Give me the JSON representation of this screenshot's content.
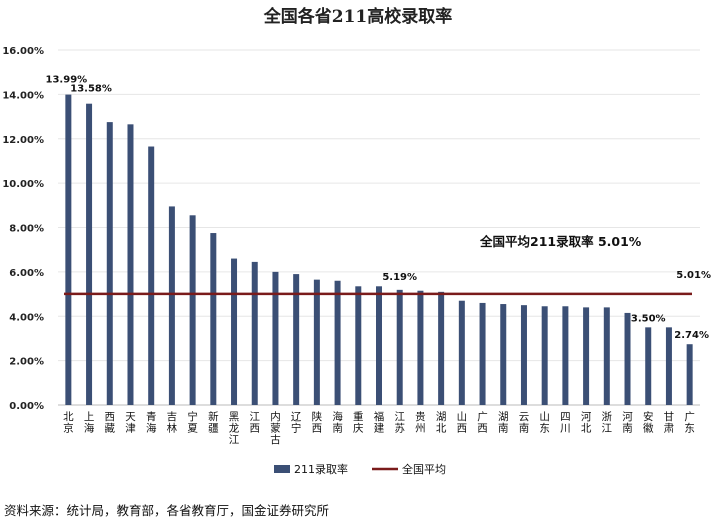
{
  "chart_data": {
    "type": "bar",
    "title": "全国各省211高校录取率",
    "categories": [
      "北京",
      "上海",
      "西藏",
      "天津",
      "青海",
      "吉林",
      "宁夏",
      "新疆",
      "黑龙江",
      "江西",
      "内蒙古",
      "辽宁",
      "陕西",
      "海南",
      "重庆",
      "福建",
      "江苏",
      "贵州",
      "湖北",
      "山西",
      "广西",
      "湖南",
      "云南",
      "山东",
      "四川",
      "河北",
      "浙江",
      "河南",
      "安徽",
      "甘肃",
      "广东"
    ],
    "series": [
      {
        "name": "211录取率",
        "values": [
          13.99,
          13.58,
          12.75,
          12.65,
          11.65,
          8.95,
          8.55,
          7.75,
          6.6,
          6.45,
          6.0,
          5.9,
          5.65,
          5.6,
          5.35,
          5.35,
          5.19,
          5.15,
          5.1,
          4.7,
          4.6,
          4.55,
          4.5,
          4.45,
          4.45,
          4.4,
          4.4,
          4.15,
          3.5,
          3.5,
          2.74
        ],
        "color": "#3b4f75"
      }
    ],
    "reference_line": {
      "name": "全国平均",
      "value": 5.01,
      "color": "#7a1b1b",
      "annotation": "全国平均211录取率 5.01%",
      "end_label": "5.01%"
    },
    "data_labels": [
      {
        "index": 0,
        "text": "13.99%"
      },
      {
        "index": 1,
        "text": "13.58%"
      },
      {
        "index": 16,
        "text": "5.19%"
      },
      {
        "index": 28,
        "text": "3.50%"
      },
      {
        "index": 30,
        "text": "2.74%"
      }
    ],
    "y_ticks": [
      "0.00%",
      "2.00%",
      "4.00%",
      "6.00%",
      "8.00%",
      "10.00%",
      "12.00%",
      "14.00%",
      "16.00%"
    ],
    "ylim": [
      0,
      16
    ],
    "grid": true,
    "legend_position": "bottom",
    "legend": [
      "211录取率",
      "全国平均"
    ]
  },
  "source_note": "资料来源：统计局，教育部，各省教育厅，国金证券研究所"
}
